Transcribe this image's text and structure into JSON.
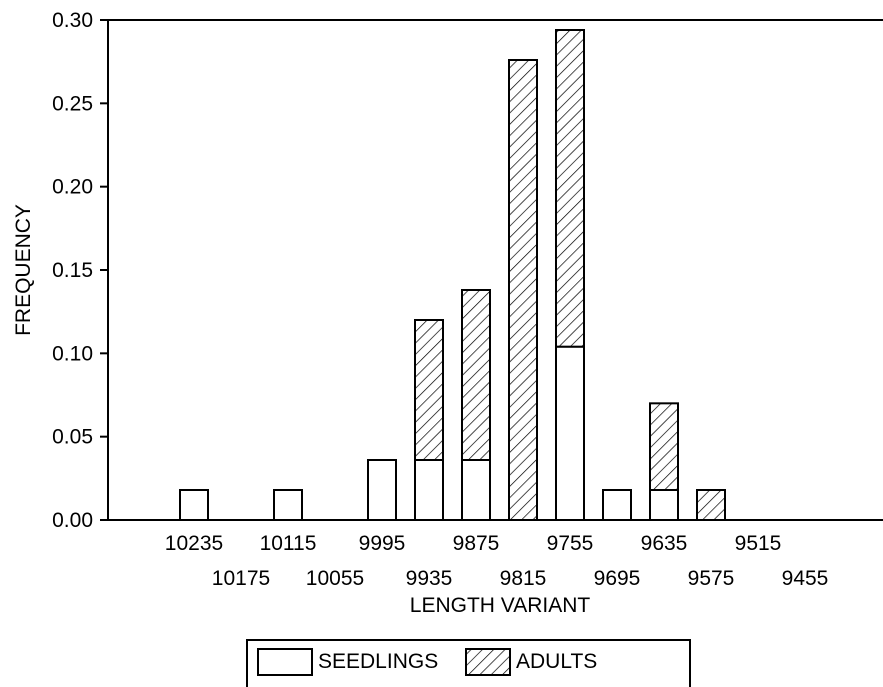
{
  "chart_data": {
    "type": "bar",
    "stacked": true,
    "title": "",
    "xlabel": "LENGTH VARIANT",
    "ylabel": "FREQUENCY",
    "ylim": [
      0,
      0.3
    ],
    "yticks": [
      "0.00",
      "0.05",
      "0.10",
      "0.15",
      "0.20",
      "0.25",
      "0.30"
    ],
    "categories": [
      "10235",
      "10175",
      "10115",
      "10055",
      "9995",
      "9935",
      "9875",
      "9815",
      "9755",
      "9695",
      "9635",
      "9575",
      "9515",
      "9455"
    ],
    "series": [
      {
        "name": "SEEDLINGS",
        "pattern": "open",
        "values": [
          0.018,
          0,
          0.018,
          0,
          0.036,
          0.036,
          0.036,
          0,
          0.104,
          0.018,
          0.018,
          0,
          0,
          0
        ]
      },
      {
        "name": "ADULTS",
        "pattern": "hatched",
        "values": [
          0,
          0,
          0,
          0,
          0,
          0.084,
          0.102,
          0.276,
          0.19,
          0,
          0.052,
          0.018,
          0,
          0
        ]
      }
    ],
    "grid": false,
    "legend_position": "bottom-center"
  }
}
